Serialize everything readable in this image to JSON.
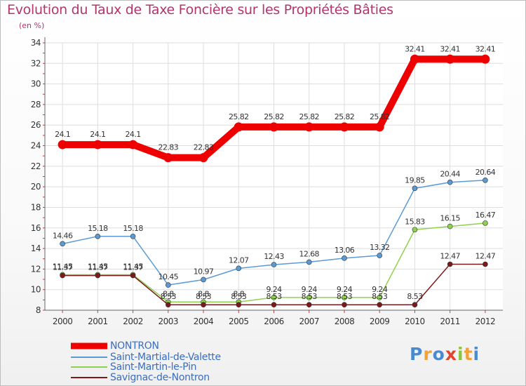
{
  "header": {
    "title": "Evolution du Taux de Taxe Foncière sur les Propriétés Bâties",
    "unit": "(en %)"
  },
  "logo": {
    "text": "Proxiti",
    "colors": [
      "#4a8bd0",
      "#f2a23a",
      "#4a8bd0",
      "#e1452f",
      "#8cc63f",
      "#f2a23a",
      "#4a8bd0"
    ]
  },
  "chart_data": {
    "type": "line",
    "title": "Evolution du Taux de Taxe Foncière sur les Propriétés Bâties",
    "xlabel": "",
    "ylabel": "(en %)",
    "ylim": [
      8,
      34
    ],
    "yticks": [
      8,
      10,
      12,
      14,
      16,
      18,
      20,
      22,
      24,
      26,
      28,
      30,
      32,
      34
    ],
    "grid": true,
    "legend": "bottom-left",
    "categories": [
      "2000",
      "2001",
      "2002",
      "2003",
      "2004",
      "2005",
      "2006",
      "2007",
      "2008",
      "2009",
      "2010",
      "2011",
      "2012"
    ],
    "series": [
      {
        "name": "NONTRON",
        "color": "#ee0000",
        "emphasis": true,
        "values": [
          24.1,
          24.1,
          24.1,
          22.83,
          22.83,
          25.82,
          25.82,
          25.82,
          25.82,
          25.82,
          32.41,
          32.41,
          32.41
        ],
        "labels": [
          "24.1",
          "24.1",
          "24.1",
          "22.83",
          "22.83",
          "25.82",
          "25.82",
          "25.82",
          "25.82",
          "25.82",
          "32.41",
          "32.41",
          "32.41"
        ]
      },
      {
        "name": "Saint-Martial-de-Valette",
        "color": "#5b9bd5",
        "values": [
          14.46,
          15.18,
          15.18,
          10.45,
          10.97,
          12.07,
          12.43,
          12.68,
          13.06,
          13.32,
          19.85,
          20.44,
          20.64
        ],
        "labels": [
          "14.46",
          "15.18",
          "15.18",
          "10.45",
          "10.97",
          "12.07",
          "12.43",
          "12.68",
          "13.06",
          "13.32",
          "19.85",
          "20.44",
          "20.64"
        ]
      },
      {
        "name": "Saint-Martin-le-Pin",
        "color": "#8fd14f",
        "values": [
          11.45,
          11.45,
          11.45,
          8.8,
          8.8,
          8.8,
          9.24,
          9.24,
          9.24,
          9.24,
          15.83,
          16.15,
          16.47
        ],
        "labels": [
          "11.45",
          "11.45",
          "11.45",
          "8.8",
          "8.8",
          "8.8",
          "9.24",
          "9.24",
          "9.24",
          "9.24",
          "15.83",
          "16.15",
          "16.47"
        ]
      },
      {
        "name": "Savignac-de-Nontron",
        "color": "#7b1a1a",
        "values": [
          11.37,
          11.37,
          11.37,
          8.53,
          8.53,
          8.53,
          8.53,
          8.53,
          8.53,
          8.53,
          8.53,
          12.47,
          12.47
        ],
        "labels": [
          "11.37",
          "11.37",
          "11.37",
          "8.53",
          "8.53",
          "8.53",
          "8.53",
          "8.53",
          "8.53",
          "8.53",
          "8.53",
          "12.47",
          "12.47"
        ]
      }
    ]
  }
}
